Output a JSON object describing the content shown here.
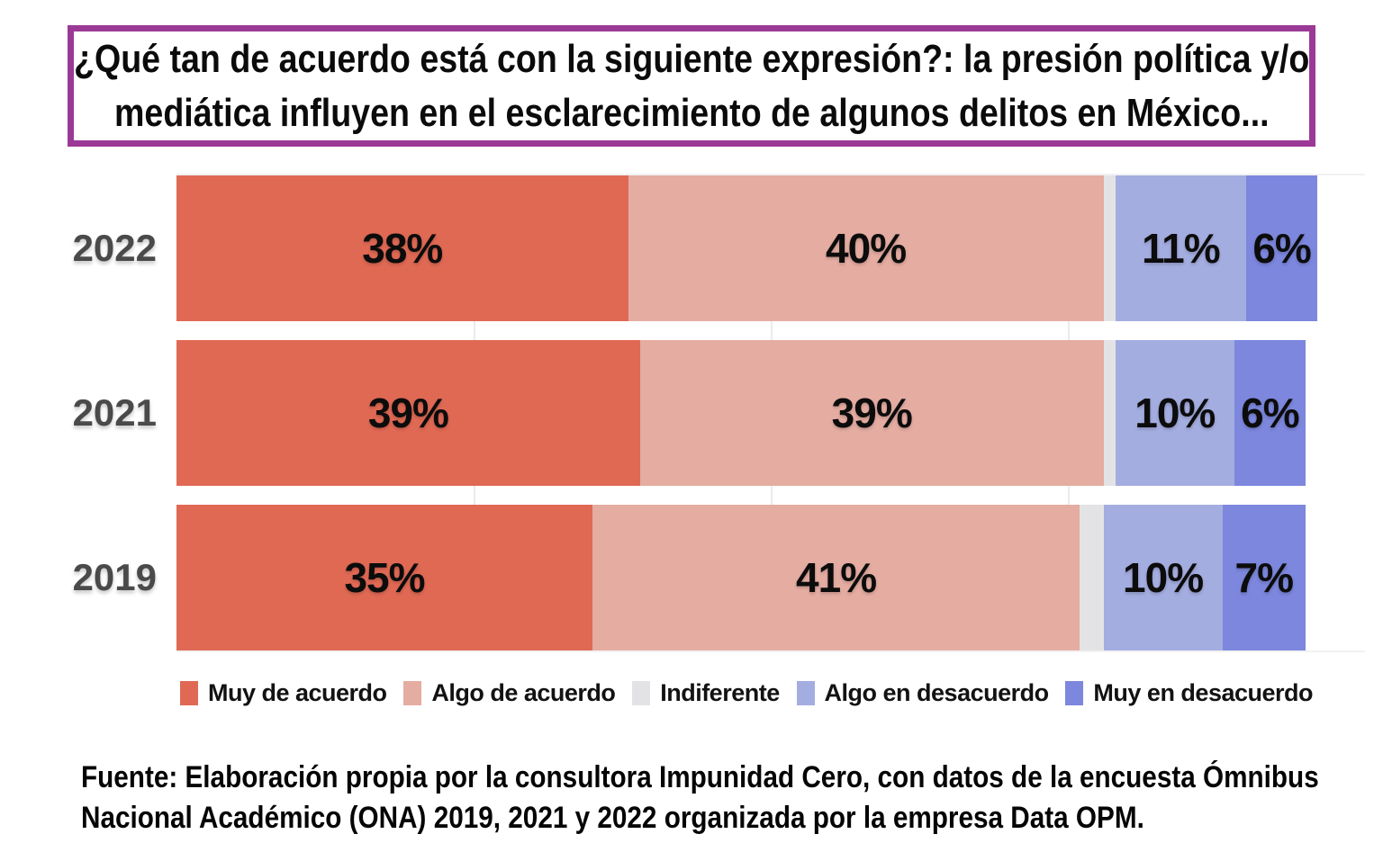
{
  "title": {
    "line1": "¿Qué tan de acuerdo está con la siguiente expresión?: la presión política y/o",
    "line2": "mediática influyen en el esclarecimiento de algunos delitos en México..."
  },
  "chart_data": {
    "type": "bar",
    "orientation": "horizontal",
    "stacked": true,
    "categories": [
      "2022",
      "2021",
      "2019"
    ],
    "series": [
      {
        "name": "Muy de acuerdo",
        "color": "#E06954",
        "values": [
          38,
          39,
          35
        ]
      },
      {
        "name": "Algo de acuerdo",
        "color": "#E5ACA2",
        "values": [
          40,
          39,
          41
        ]
      },
      {
        "name": "Indiferente",
        "color": "#E3E3E6",
        "values": [
          1,
          1,
          2
        ]
      },
      {
        "name": "Algo en desacuerdo",
        "color": "#A4ADE0",
        "values": [
          11,
          10,
          10
        ]
      },
      {
        "name": "Muy en desacuerdo",
        "color": "#7C87DD",
        "values": [
          6,
          6,
          7
        ]
      }
    ],
    "data_labels": {
      "format": "percent",
      "min_value_for_label": 5
    },
    "xlim": [
      0,
      100
    ],
    "gridlines_percent": [
      25,
      50,
      75
    ],
    "grid": "faint vertical",
    "legend_position": "bottom",
    "bar_label_color": "#4a4a4a"
  },
  "source": {
    "line1": "Fuente: Elaboración propia por la consultora Impunidad Cero, con datos de la encuesta Ómnibus",
    "line2": "Nacional Académico (ONA) 2019, 2021 y 2022 organizada por la empresa Data OPM."
  },
  "colors": {
    "title_border": "#9B3996",
    "background": "#ffffff",
    "year_label": "#4a4a4a",
    "segment_label": "#0c0c0c",
    "gridline": "#ebebeb"
  }
}
